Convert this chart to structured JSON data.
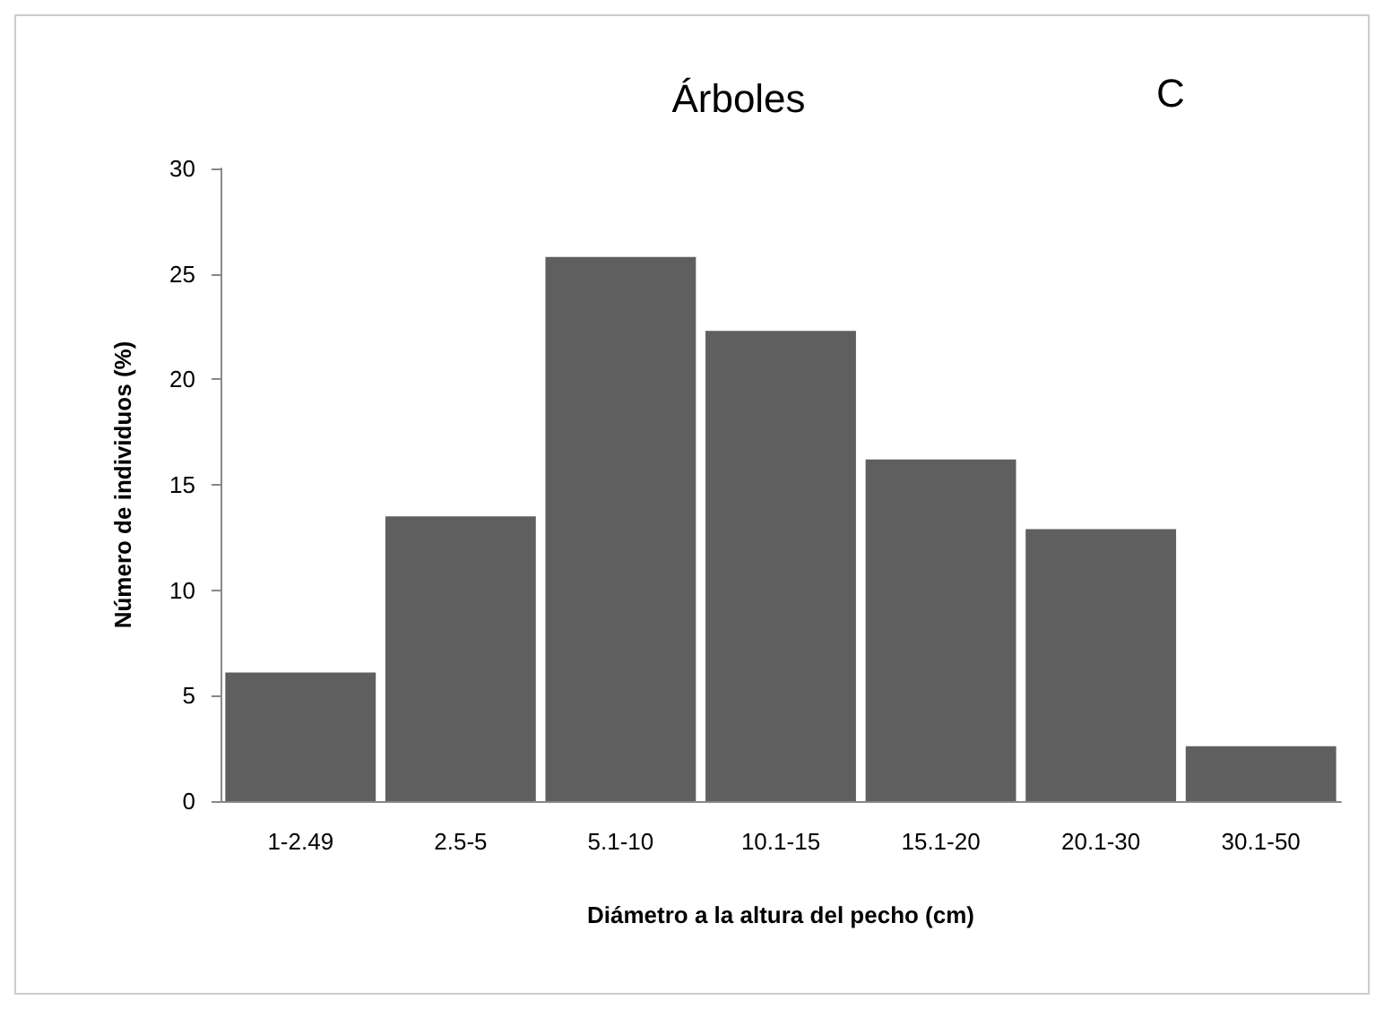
{
  "chart_data": {
    "type": "bar",
    "title": "Árboles",
    "annotations": [
      "C"
    ],
    "xlabel": "Diámetro a la altura del pecho (cm)",
    "ylabel": "Número de individuos (%)",
    "categories": [
      "1-2.49",
      "2.5-5",
      "5.1-10",
      "10.1-15",
      "15.1-20",
      "20.1-30",
      "30.1-50"
    ],
    "values": [
      6.1,
      13.5,
      25.8,
      22.3,
      16.2,
      12.9,
      2.6
    ],
    "color": "#5f5f5f",
    "ylim": [
      0,
      30
    ],
    "yticks": [
      0,
      5,
      10,
      15,
      20,
      25,
      30
    ],
    "grid": false
  }
}
